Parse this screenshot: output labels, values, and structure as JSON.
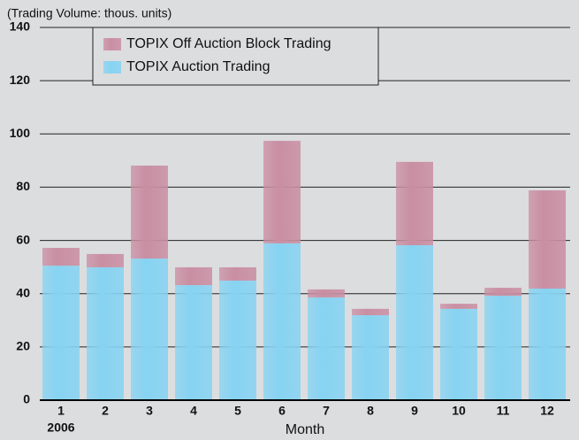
{
  "chart_data": {
    "type": "stacked_bar",
    "annotation": "(Trading Volume: thous. units)",
    "x_label": "Month",
    "year_label": "2006",
    "categories": [
      "1",
      "2",
      "3",
      "4",
      "5",
      "6",
      "7",
      "8",
      "9",
      "10",
      "11",
      "12"
    ],
    "series": [
      {
        "name": "TOPIX Auction Trading",
        "color": "#86d3f2",
        "values": [
          50.5,
          49.9,
          53.2,
          43.2,
          44.9,
          58.9,
          38.6,
          31.9,
          58.2,
          34.3,
          39.2,
          41.9
        ]
      },
      {
        "name": "TOPIX Off Auction Block Trading",
        "color": "#c98ea2",
        "values": [
          6.7,
          5.0,
          34.9,
          6.7,
          5.0,
          38.5,
          3.0,
          2.4,
          31.3,
          1.9,
          3.0,
          36.9
        ]
      }
    ],
    "ylim": [
      0,
      140
    ],
    "yticks": [
      0,
      20,
      40,
      60,
      80,
      100,
      120,
      140
    ],
    "grid": true
  }
}
